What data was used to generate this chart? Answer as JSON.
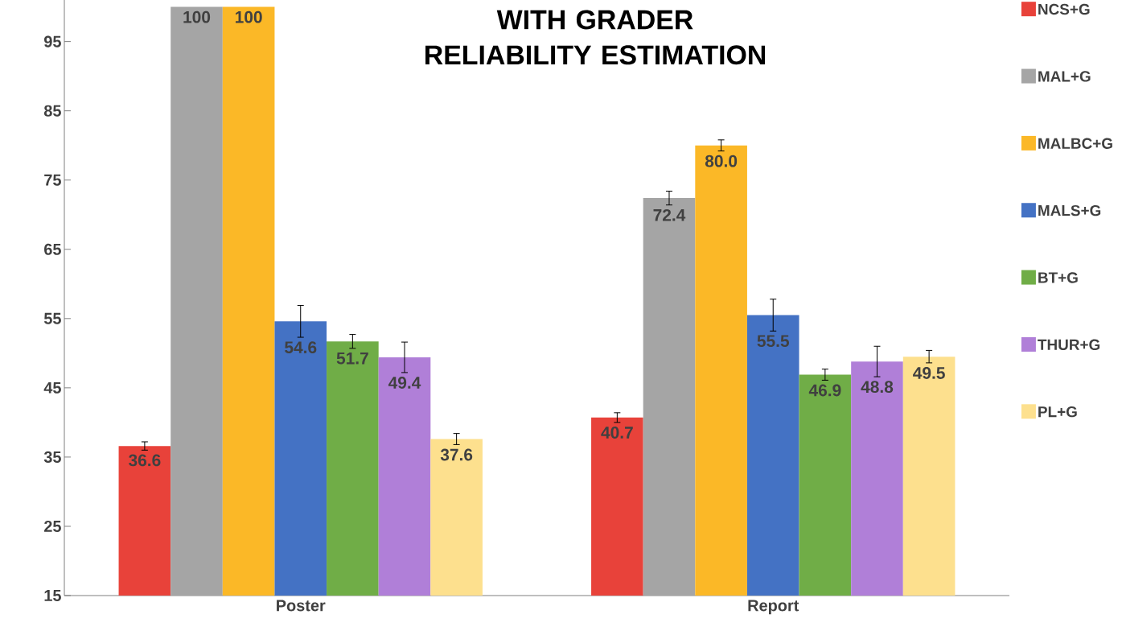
{
  "chart_data": {
    "type": "bar",
    "title": "WITH GRADER RELIABILITY ESTIMATION",
    "categories": [
      "Poster",
      "Report"
    ],
    "ylim": [
      15,
      101
    ],
    "yticks": [
      15,
      25,
      35,
      45,
      55,
      65,
      75,
      85,
      95
    ],
    "legend": "right",
    "series": [
      {
        "name": "NCS+G",
        "color": "#e8423a",
        "values": [
          36.6,
          40.7
        ],
        "errors": [
          0.6,
          0.7
        ],
        "value_labels": [
          "36.6",
          "40.7"
        ]
      },
      {
        "name": "MAL+G",
        "color": "#a5a5a5",
        "values": [
          100,
          72.4
        ],
        "errors": [
          null,
          1.0
        ],
        "value_labels": [
          "100",
          "72.4"
        ]
      },
      {
        "name": "MALBC+G",
        "color": "#fbb827",
        "values": [
          100,
          80.0
        ],
        "errors": [
          null,
          0.8
        ],
        "value_labels": [
          "100",
          "80.0"
        ]
      },
      {
        "name": "MALS+G",
        "color": "#4472c4",
        "values": [
          54.6,
          55.5
        ],
        "errors": [
          2.3,
          2.3
        ],
        "value_labels": [
          "54.6",
          "55.5"
        ]
      },
      {
        "name": "BT+G",
        "color": "#70ad47",
        "values": [
          51.7,
          46.9
        ],
        "errors": [
          1.0,
          0.8
        ],
        "value_labels": [
          "51.7",
          "46.9"
        ]
      },
      {
        "name": "THUR+G",
        "color": "#b07fd8",
        "values": [
          49.4,
          48.8
        ],
        "errors": [
          2.2,
          2.2
        ],
        "value_labels": [
          "49.4",
          "48.8"
        ]
      },
      {
        "name": "PL+G",
        "color": "#fde08e",
        "values": [
          37.6,
          49.5
        ],
        "errors": [
          0.8,
          0.9
        ],
        "value_labels": [
          "37.6",
          "49.5"
        ]
      }
    ]
  }
}
